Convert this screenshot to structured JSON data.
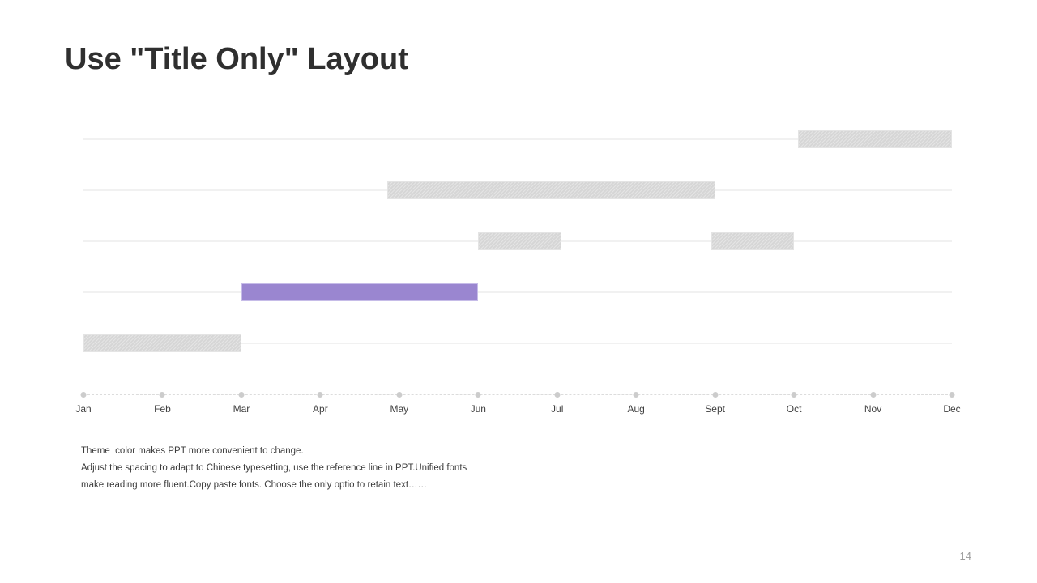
{
  "slide": {
    "title": "Use \"Title Only\" Layout",
    "page_number": "14",
    "notes": {
      "line1": "Theme  color makes PPT more convenient to change.",
      "line2": "Adjust the spacing to adapt to Chinese typesetting, use the reference line in PPT.Unified fonts",
      "line3": "make reading more fluent.Copy paste fonts. Choose the only optio to retain text……"
    }
  },
  "chart_data": {
    "type": "bar",
    "subtype": "horizontal-gantt-timeline",
    "title": "",
    "xlabel": "",
    "ylabel": "",
    "legend": "none",
    "grid": "horizontal-rows-only",
    "x_axis": {
      "categories": [
        "Jan",
        "Feb",
        "Mar",
        "Apr",
        "May",
        "Jun",
        "Jul",
        "Aug",
        "Sept",
        "Oct",
        "Nov",
        "Dec"
      ],
      "scale_note": "month index 0 = Jan dot, 11 = Dec dot"
    },
    "rows": [
      {
        "row": 1,
        "bars": [
          {
            "start": 9.05,
            "end": 11.0,
            "label": "Oct to Dec",
            "color_key": "gray"
          }
        ]
      },
      {
        "row": 2,
        "bars": [
          {
            "start": 3.85,
            "end": 8.0,
            "label": "mid-Apr to Sept",
            "color_key": "gray"
          }
        ]
      },
      {
        "row": 3,
        "bars": [
          {
            "start": 5.0,
            "end": 6.05,
            "label": "Jun to Jul",
            "color_key": "gray"
          },
          {
            "start": 7.95,
            "end": 9.0,
            "label": "Sept to Oct",
            "color_key": "gray"
          }
        ]
      },
      {
        "row": 4,
        "bars": [
          {
            "start": 2.0,
            "end": 5.0,
            "label": "Mar to Jun",
            "color_key": "accent"
          }
        ]
      },
      {
        "row": 5,
        "bars": [
          {
            "start": 0.0,
            "end": 2.0,
            "label": "Jan to Mar",
            "color_key": "gray"
          }
        ]
      }
    ],
    "colors": {
      "accent": "#9a86d0",
      "gray": "#d9d9d9",
      "gridline": "#f1f1f1",
      "axis_line": "#dcdcdc",
      "dot": "#cccccc"
    }
  }
}
